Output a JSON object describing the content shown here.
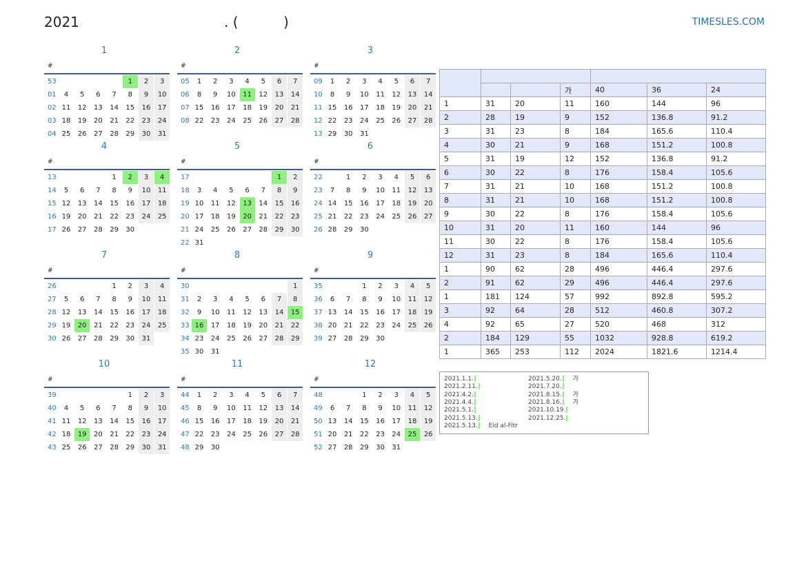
{
  "header": {
    "year": "2021",
    "title_mid": ". (",
    "title_end": ")",
    "site": "TIMESLES.COM"
  },
  "calendar": {
    "week_header": "#",
    "months": [
      {
        "label": "1",
        "holidays": [
          1
        ],
        "weeks": [
          [
            "53",
            null,
            null,
            null,
            null,
            1,
            2,
            3
          ],
          [
            "01",
            4,
            5,
            6,
            7,
            8,
            9,
            10
          ],
          [
            "02",
            11,
            12,
            13,
            14,
            15,
            16,
            17
          ],
          [
            "03",
            18,
            19,
            20,
            21,
            22,
            23,
            24
          ],
          [
            "04",
            25,
            26,
            27,
            28,
            29,
            30,
            31
          ]
        ]
      },
      {
        "label": "2",
        "holidays": [
          11
        ],
        "weeks": [
          [
            "05",
            1,
            2,
            3,
            4,
            5,
            6,
            7
          ],
          [
            "06",
            8,
            9,
            10,
            11,
            12,
            13,
            14
          ],
          [
            "07",
            15,
            16,
            17,
            18,
            19,
            20,
            21
          ],
          [
            "08",
            22,
            23,
            24,
            25,
            26,
            27,
            28
          ]
        ]
      },
      {
        "label": "3",
        "holidays": [],
        "weeks": [
          [
            "09",
            1,
            2,
            3,
            4,
            5,
            6,
            7
          ],
          [
            "10",
            8,
            9,
            10,
            11,
            12,
            13,
            14
          ],
          [
            "11",
            15,
            16,
            17,
            18,
            19,
            20,
            21
          ],
          [
            "12",
            22,
            23,
            24,
            25,
            26,
            27,
            28
          ],
          [
            "13",
            29,
            30,
            31,
            null,
            null,
            null,
            null
          ]
        ]
      },
      {
        "label": "4",
        "holidays": [
          2,
          4
        ],
        "weeks": [
          [
            "13",
            null,
            null,
            null,
            1,
            2,
            3,
            4
          ],
          [
            "14",
            5,
            6,
            7,
            8,
            9,
            10,
            11
          ],
          [
            "15",
            12,
            13,
            14,
            15,
            16,
            17,
            18
          ],
          [
            "16",
            19,
            20,
            21,
            22,
            23,
            24,
            25
          ],
          [
            "17",
            26,
            27,
            28,
            29,
            30,
            null,
            null
          ]
        ]
      },
      {
        "label": "5",
        "holidays": [
          1,
          13,
          20
        ],
        "weeks": [
          [
            "17",
            null,
            null,
            null,
            null,
            null,
            1,
            2
          ],
          [
            "18",
            3,
            4,
            5,
            6,
            7,
            8,
            9
          ],
          [
            "19",
            10,
            11,
            12,
            13,
            14,
            15,
            16
          ],
          [
            "20",
            17,
            18,
            19,
            20,
            21,
            22,
            23
          ],
          [
            "21",
            24,
            25,
            26,
            27,
            28,
            29,
            30
          ],
          [
            "22",
            31,
            null,
            null,
            null,
            null,
            null,
            null
          ]
        ]
      },
      {
        "label": "6",
        "holidays": [],
        "weeks": [
          [
            "22",
            null,
            1,
            2,
            3,
            4,
            5,
            6
          ],
          [
            "23",
            7,
            8,
            9,
            10,
            11,
            12,
            13
          ],
          [
            "24",
            14,
            15,
            16,
            17,
            18,
            19,
            20
          ],
          [
            "25",
            21,
            22,
            23,
            24,
            25,
            26,
            27
          ],
          [
            "26",
            28,
            29,
            30,
            null,
            null,
            null,
            null
          ]
        ]
      },
      {
        "label": "7",
        "holidays": [
          20
        ],
        "weeks": [
          [
            "26",
            null,
            null,
            null,
            1,
            2,
            3,
            4
          ],
          [
            "27",
            5,
            6,
            7,
            8,
            9,
            10,
            11
          ],
          [
            "28",
            12,
            13,
            14,
            15,
            16,
            17,
            18
          ],
          [
            "29",
            19,
            20,
            21,
            22,
            23,
            24,
            25
          ],
          [
            "30",
            26,
            27,
            28,
            29,
            30,
            31,
            null
          ]
        ]
      },
      {
        "label": "8",
        "holidays": [
          15,
          16
        ],
        "weeks": [
          [
            "30",
            null,
            null,
            null,
            null,
            null,
            null,
            1
          ],
          [
            "31",
            2,
            3,
            4,
            5,
            6,
            7,
            8
          ],
          [
            "32",
            9,
            10,
            11,
            12,
            13,
            14,
            15
          ],
          [
            "33",
            16,
            17,
            18,
            19,
            20,
            21,
            22
          ],
          [
            "34",
            23,
            24,
            25,
            26,
            27,
            28,
            29
          ],
          [
            "35",
            30,
            31,
            null,
            null,
            null,
            null,
            null
          ]
        ]
      },
      {
        "label": "9",
        "holidays": [],
        "weeks": [
          [
            "35",
            null,
            null,
            1,
            2,
            3,
            4,
            5
          ],
          [
            "36",
            6,
            7,
            8,
            9,
            10,
            11,
            12
          ],
          [
            "37",
            13,
            14,
            15,
            16,
            17,
            18,
            19
          ],
          [
            "38",
            20,
            21,
            22,
            23,
            24,
            25,
            26
          ],
          [
            "39",
            27,
            28,
            29,
            30,
            null,
            null,
            null
          ]
        ]
      },
      {
        "label": "10",
        "holidays": [
          19
        ],
        "weeks": [
          [
            "39",
            null,
            null,
            null,
            null,
            1,
            2,
            3
          ],
          [
            "40",
            4,
            5,
            6,
            7,
            8,
            9,
            10
          ],
          [
            "41",
            11,
            12,
            13,
            14,
            15,
            16,
            17
          ],
          [
            "42",
            18,
            19,
            20,
            21,
            22,
            23,
            24
          ],
          [
            "43",
            25,
            26,
            27,
            28,
            29,
            30,
            31
          ]
        ]
      },
      {
        "label": "11",
        "holidays": [],
        "weeks": [
          [
            "44",
            1,
            2,
            3,
            4,
            5,
            6,
            7
          ],
          [
            "45",
            8,
            9,
            10,
            11,
            12,
            13,
            14
          ],
          [
            "46",
            15,
            16,
            17,
            18,
            19,
            20,
            21
          ],
          [
            "47",
            22,
            23,
            24,
            25,
            26,
            27,
            28
          ],
          [
            "48",
            29,
            30,
            null,
            null,
            null,
            null,
            null
          ]
        ]
      },
      {
        "label": "12",
        "holidays": [
          25
        ],
        "weeks": [
          [
            "48",
            null,
            null,
            1,
            2,
            3,
            4,
            5
          ],
          [
            "49",
            6,
            7,
            8,
            9,
            10,
            11,
            12
          ],
          [
            "50",
            13,
            14,
            15,
            16,
            17,
            18,
            19
          ],
          [
            "51",
            20,
            21,
            22,
            23,
            24,
            25,
            26
          ],
          [
            "52",
            27,
            28,
            29,
            30,
            31,
            null,
            null
          ]
        ]
      }
    ]
  },
  "summary_table": {
    "subheader": [
      null,
      null,
      "가",
      40,
      36,
      24
    ],
    "rows": [
      [
        "1",
        31,
        20,
        11,
        160,
        144,
        96
      ],
      [
        "2",
        28,
        19,
        9,
        152,
        136.8,
        91.2
      ],
      [
        "3",
        31,
        23,
        8,
        184,
        165.6,
        110.4
      ],
      [
        "4",
        30,
        21,
        9,
        168,
        151.2,
        100.8
      ],
      [
        "5",
        31,
        19,
        12,
        152,
        136.8,
        91.2
      ],
      [
        "6",
        30,
        22,
        8,
        176,
        158.4,
        105.6
      ],
      [
        "7",
        31,
        21,
        10,
        168,
        151.2,
        100.8
      ],
      [
        "8",
        31,
        21,
        10,
        168,
        151.2,
        100.8
      ],
      [
        "9",
        30,
        22,
        8,
        176,
        158.4,
        105.6
      ],
      [
        "10",
        31,
        20,
        11,
        160,
        144,
        96
      ],
      [
        "11",
        30,
        22,
        8,
        176,
        158.4,
        105.6
      ],
      [
        "12",
        31,
        23,
        8,
        184,
        165.6,
        110.4
      ],
      [
        "1",
        90,
        62,
        28,
        496,
        446.4,
        297.6
      ],
      [
        "2",
        91,
        62,
        29,
        496,
        446.4,
        297.6
      ],
      [
        "1",
        181,
        124,
        57,
        992,
        892.8,
        595.2
      ],
      [
        "3",
        92,
        64,
        28,
        512,
        460.8,
        307.2
      ],
      [
        "4",
        92,
        65,
        27,
        520,
        468,
        312
      ],
      [
        "2",
        184,
        129,
        55,
        1032,
        928.8,
        619.2
      ],
      [
        "1",
        365,
        253,
        112,
        2024,
        1821.6,
        1214.4
      ]
    ]
  },
  "holiday_list": {
    "left": [
      {
        "date": "2021.1.1."
      },
      {
        "date": "2021.2.11."
      },
      {
        "date": "2021.4.2."
      },
      {
        "date": "2021.4.4."
      },
      {
        "date": "2021.5.1."
      },
      {
        "date": "2021.5.13."
      },
      {
        "date": "2021.5.13.",
        "name": "Eid al-Fitr"
      }
    ],
    "right": [
      {
        "date": "2021.5.20.",
        "name": "가"
      },
      {
        "date": "2021.7.20."
      },
      {
        "date": "2021.8.15.",
        "name": "가"
      },
      {
        "date": "2021.8.16.",
        "name": "가"
      },
      {
        "date": "2021.10.19."
      },
      {
        "date": "2021.12.25."
      }
    ]
  }
}
